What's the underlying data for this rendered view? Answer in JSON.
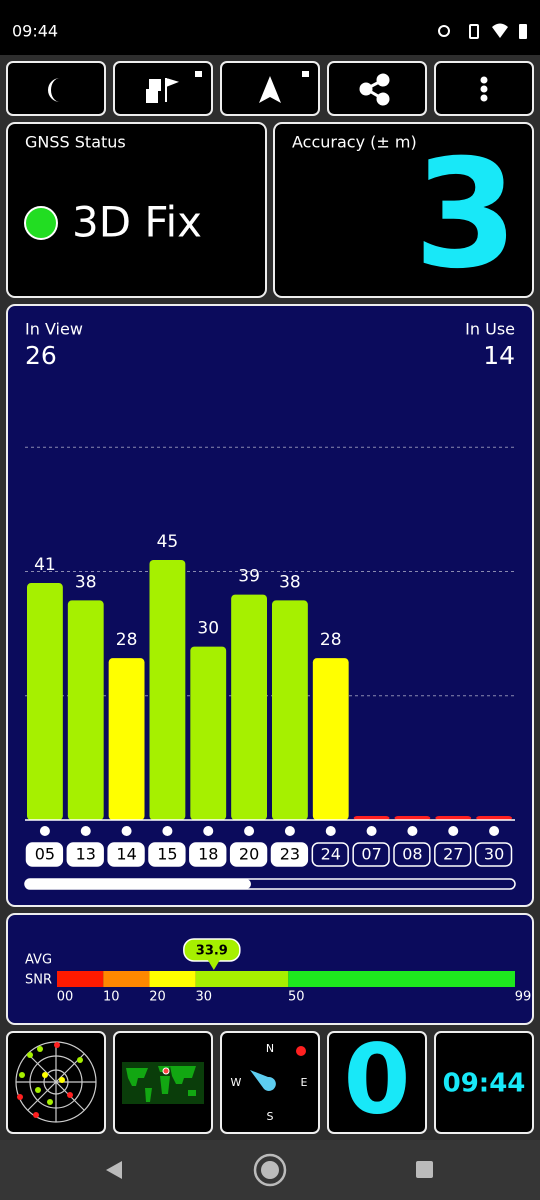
{
  "status_bar": {
    "time": "09:44"
  },
  "gnss_status": {
    "title": "GNSS Status",
    "value": "3D Fix"
  },
  "accuracy": {
    "title": "Accuracy (± m)",
    "value": "3"
  },
  "satellites": {
    "in_view_label": "In View",
    "in_view": 26,
    "in_use_label": "In Use",
    "in_use": 14
  },
  "chart_data": {
    "type": "bar",
    "categories": [
      "05",
      "13",
      "14",
      "15",
      "18",
      "20",
      "23",
      "24",
      "07",
      "08",
      "27",
      "30"
    ],
    "values": [
      41,
      38,
      28,
      45,
      30,
      39,
      38,
      28,
      0,
      0,
      0,
      0
    ],
    "colors": [
      "#a6f000",
      "#a6f000",
      "#ffff00",
      "#a6f000",
      "#a6f000",
      "#a6f000",
      "#a6f000",
      "#ffff00",
      "#ff2020",
      "#ff2020",
      "#ff2020",
      "#ff2020"
    ],
    "used": [
      true,
      true,
      true,
      true,
      true,
      true,
      true,
      false,
      false,
      false,
      false,
      false
    ],
    "ylim": [
      0,
      86
    ],
    "yticks": [
      21.5,
      43,
      64.5
    ],
    "grid": true
  },
  "snr": {
    "label_avg": "AVG",
    "label_snr": "SNR",
    "value": 33.9,
    "xlim": [
      0,
      99
    ],
    "xticks": [
      {
        "value": 0,
        "label": "00"
      },
      10,
      20,
      30,
      50,
      99
    ],
    "segments": [
      {
        "from": 0,
        "to": 10,
        "color": "#ff1a00"
      },
      {
        "from": 10,
        "to": 20,
        "color": "#ff8800"
      },
      {
        "from": 20,
        "to": 30,
        "color": "#ffff00"
      },
      {
        "from": 30,
        "to": 50,
        "color": "#a6f000"
      },
      {
        "from": 50,
        "to": 99,
        "color": "#1ee81e"
      }
    ]
  },
  "compass": {
    "north": "N",
    "east": "E",
    "south": "S",
    "west": "W"
  },
  "speed": {
    "value": "0"
  },
  "clock": {
    "value": "09:44"
  }
}
